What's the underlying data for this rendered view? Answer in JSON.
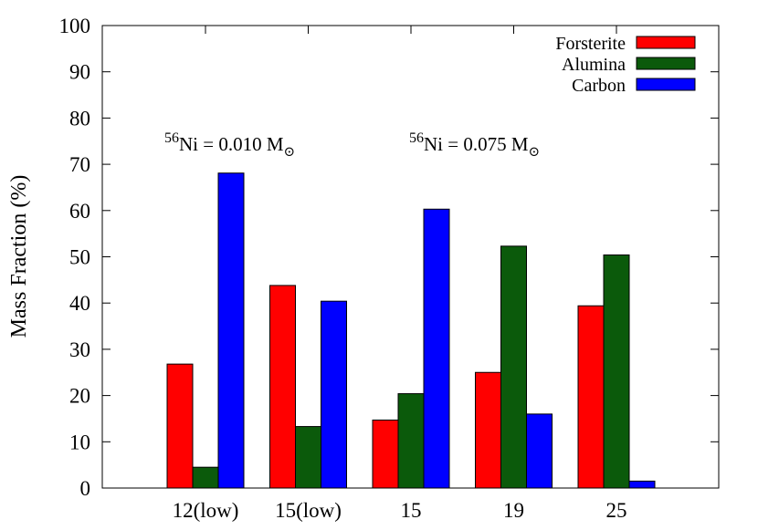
{
  "chart_data": {
    "type": "bar",
    "title": "",
    "xlabel": "",
    "ylabel": "Mass Fraction (%)",
    "ylim": [
      0,
      100
    ],
    "yticks": [
      0,
      10,
      20,
      30,
      40,
      50,
      60,
      70,
      80,
      90,
      100
    ],
    "categories": [
      "12(low)",
      "15(low)",
      "15",
      "19",
      "25"
    ],
    "series": [
      {
        "name": "Forsterite",
        "color": "#ff0000",
        "values": [
          26.8,
          43.8,
          14.7,
          25.0,
          39.4
        ]
      },
      {
        "name": "Alumina",
        "color": "#0b5a0b",
        "values": [
          4.5,
          13.3,
          20.4,
          52.3,
          50.4
        ]
      },
      {
        "name": "Carbon",
        "color": "#0000ff",
        "values": [
          68.1,
          40.4,
          60.3,
          16.0,
          1.5
        ]
      }
    ],
    "legend_position": "top-right",
    "annotations": [
      {
        "sup": "56",
        "text": "Ni = 0.010 M",
        "sub": "⊙"
      },
      {
        "sup": "56",
        "text": "Ni = 0.075 M",
        "sub": "⊙"
      }
    ]
  }
}
